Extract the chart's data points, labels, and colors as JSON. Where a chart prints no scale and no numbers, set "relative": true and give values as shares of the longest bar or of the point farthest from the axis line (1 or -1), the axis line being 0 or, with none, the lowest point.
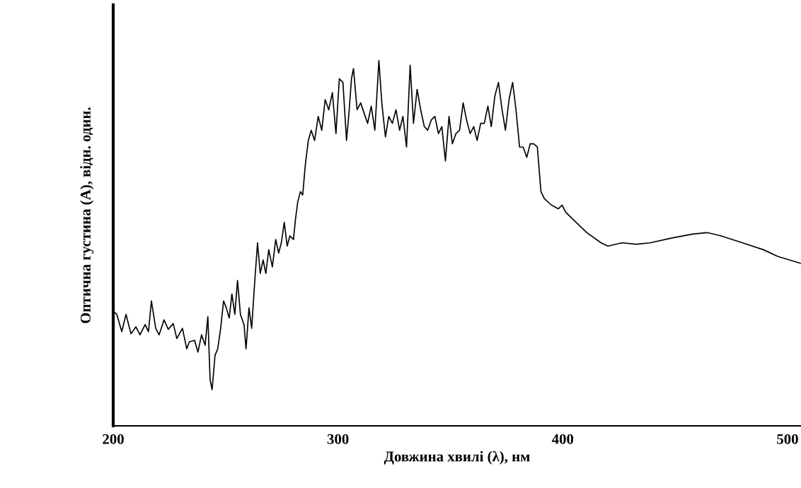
{
  "chart_data": {
    "type": "line",
    "xlabel": "Довжина хвилі (λ), нм",
    "ylabel": "Оптична густина (А), відн. один.",
    "relative": true,
    "xlim": [
      200,
      506
    ],
    "xticks": [
      200,
      300,
      400,
      500
    ],
    "grid": false,
    "legend": false,
    "marker": "none",
    "line_style": "solid",
    "series": [
      {
        "color": "#000000",
        "x": [
          200.0,
          201.6,
          203.8,
          205.7,
          207.9,
          210.1,
          211.9,
          214.2,
          215.7,
          217.0,
          218.9,
          220.4,
          222.6,
          224.5,
          226.7,
          228.3,
          230.8,
          232.7,
          233.9,
          236.2,
          237.7,
          239.3,
          240.9,
          242.1,
          243.1,
          244.0,
          245.3,
          246.5,
          247.8,
          249.1,
          250.3,
          251.6,
          252.8,
          254.1,
          255.3,
          256.6,
          258.2,
          259.1,
          260.4,
          261.6,
          262.9,
          264.2,
          265.4,
          266.7,
          267.9,
          269.2,
          270.8,
          272.3,
          273.6,
          274.8,
          276.1,
          277.4,
          278.6,
          280.2,
          281.1,
          282.1,
          283.3,
          284.3,
          285.5,
          286.8,
          288.1,
          289.6,
          291.2,
          292.8,
          294.3,
          295.9,
          297.5,
          299.1,
          300.6,
          302.2,
          303.8,
          305.0,
          306.0,
          306.9,
          308.5,
          310.1,
          311.6,
          313.2,
          314.8,
          316.4,
          318.2,
          319.5,
          321.1,
          322.6,
          324.2,
          325.8,
          327.4,
          328.9,
          330.5,
          332.1,
          333.6,
          335.2,
          336.8,
          338.4,
          339.9,
          341.5,
          343.1,
          344.7,
          346.2,
          347.8,
          349.4,
          350.9,
          352.5,
          354.1,
          355.7,
          357.2,
          358.8,
          360.4,
          361.9,
          363.5,
          365.1,
          366.7,
          368.2,
          369.8,
          371.4,
          373.0,
          374.5,
          376.1,
          377.7,
          379.2,
          380.8,
          382.4,
          384.0,
          385.5,
          387.1,
          388.7,
          390.3,
          391.8,
          395.0,
          398.1,
          399.7,
          401.3,
          404.4,
          410.7,
          417.0,
          420.1,
          426.4,
          432.7,
          439.0,
          448.4,
          457.9,
          464.2,
          470.4,
          479.9,
          489.3,
          495.6,
          505.7
        ],
        "values": [
          0.314,
          0.305,
          0.258,
          0.305,
          0.252,
          0.271,
          0.249,
          0.277,
          0.258,
          0.342,
          0.267,
          0.249,
          0.29,
          0.264,
          0.28,
          0.239,
          0.267,
          0.211,
          0.23,
          0.234,
          0.202,
          0.249,
          0.221,
          0.299,
          0.127,
          0.099,
          0.193,
          0.211,
          0.267,
          0.342,
          0.323,
          0.295,
          0.361,
          0.305,
          0.398,
          0.305,
          0.277,
          0.211,
          0.323,
          0.267,
          0.389,
          0.501,
          0.417,
          0.454,
          0.417,
          0.482,
          0.435,
          0.51,
          0.473,
          0.501,
          0.557,
          0.492,
          0.52,
          0.51,
          0.566,
          0.613,
          0.641,
          0.632,
          0.716,
          0.781,
          0.809,
          0.781,
          0.847,
          0.809,
          0.893,
          0.865,
          0.912,
          0.8,
          0.95,
          0.94,
          0.781,
          0.865,
          0.95,
          0.978,
          0.865,
          0.884,
          0.856,
          0.828,
          0.875,
          0.809,
          1.0,
          0.884,
          0.791,
          0.847,
          0.828,
          0.865,
          0.809,
          0.847,
          0.763,
          0.987,
          0.828,
          0.921,
          0.865,
          0.819,
          0.809,
          0.837,
          0.847,
          0.8,
          0.819,
          0.725,
          0.847,
          0.772,
          0.8,
          0.809,
          0.884,
          0.837,
          0.8,
          0.819,
          0.781,
          0.828,
          0.828,
          0.875,
          0.819,
          0.903,
          0.94,
          0.865,
          0.809,
          0.893,
          0.94,
          0.865,
          0.763,
          0.763,
          0.735,
          0.772,
          0.772,
          0.763,
          0.641,
          0.622,
          0.604,
          0.594,
          0.604,
          0.585,
          0.566,
          0.529,
          0.501,
          0.492,
          0.501,
          0.497,
          0.501,
          0.514,
          0.525,
          0.529,
          0.52,
          0.501,
          0.482,
          0.464,
          0.445
        ]
      }
    ]
  }
}
